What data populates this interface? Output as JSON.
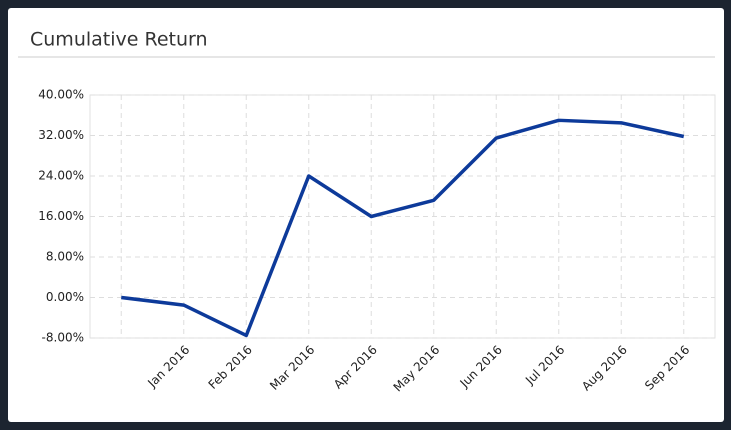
{
  "chart_data": {
    "type": "line",
    "title": "Cumulative Return",
    "categories": [
      null,
      "Jan 2016",
      "Feb 2016",
      "Mar 2016",
      "Apr 2016",
      "May 2016",
      "Jun 2016",
      "Jul 2016",
      "Aug 2016",
      "Sep 2016"
    ],
    "values": [
      0.0,
      -1.5,
      -7.5,
      24.0,
      16.0,
      19.2,
      31.5,
      35.0,
      34.5,
      31.8
    ],
    "color": "#0d3a9a",
    "ylim": [
      -8,
      40
    ],
    "yticks": [
      {
        "value": -8,
        "label": "-8.00%"
      },
      {
        "value": 0,
        "label": "0.00%"
      },
      {
        "value": 8,
        "label": "8.00%"
      },
      {
        "value": 16,
        "label": "16.00%"
      },
      {
        "value": 24,
        "label": "24.00%"
      },
      {
        "value": 32,
        "label": "32.00%"
      },
      {
        "value": 40,
        "label": "40.00%"
      }
    ],
    "grid": true
  }
}
